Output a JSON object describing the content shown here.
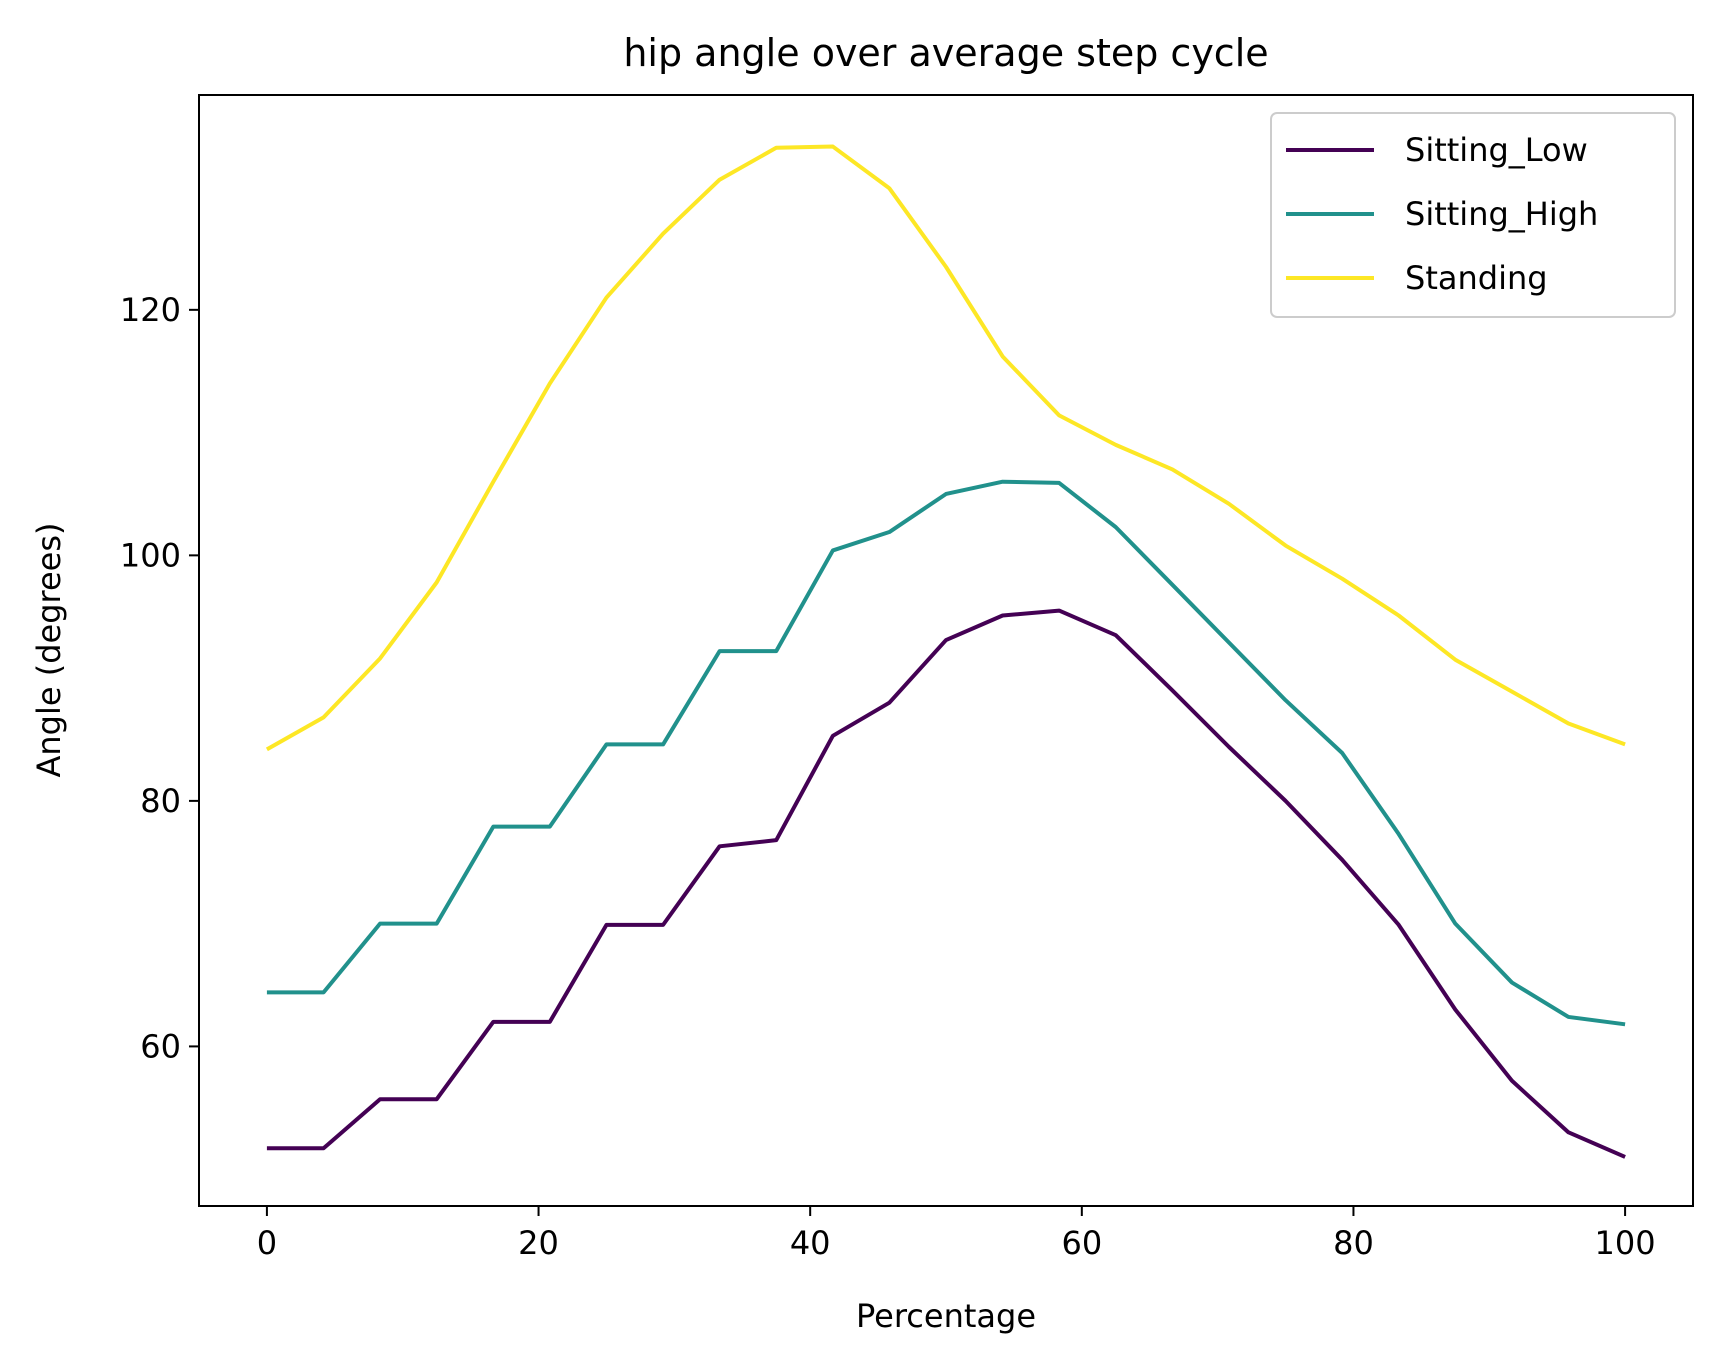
{
  "chart_data": {
    "type": "line",
    "title": "hip  angle over average step cycle",
    "xlabel": "Percentage",
    "ylabel": "Angle (degrees)",
    "xlim": [
      -5,
      105
    ],
    "ylim": [
      47,
      137.5
    ],
    "xticks": [
      0,
      20,
      40,
      60,
      80,
      100
    ],
    "yticks": [
      60,
      80,
      100,
      120
    ],
    "grid": false,
    "legend_position": "top-right",
    "x": [
      0,
      4.17,
      8.33,
      12.5,
      16.67,
      20.83,
      25,
      29.17,
      33.33,
      37.5,
      41.67,
      45.83,
      50,
      54.17,
      58.33,
      62.5,
      66.67,
      70.83,
      75,
      79.17,
      83.33,
      87.5,
      91.67,
      95.83,
      100
    ],
    "series": [
      {
        "name": "Sitting_Low",
        "color": "#440154",
        "values": [
          51.7,
          51.7,
          55.7,
          55.7,
          62.0,
          62.0,
          69.9,
          69.9,
          76.3,
          76.8,
          85.3,
          88.0,
          93.1,
          95.1,
          95.5,
          93.5,
          89.0,
          84.4,
          80.0,
          75.2,
          69.9,
          63.0,
          57.2,
          53.0,
          51.0
        ],
        "label_bind": "Sitting_Low"
      },
      {
        "name": "Sitting_High",
        "color": "#21918c",
        "values": [
          64.4,
          64.4,
          70.0,
          70.0,
          77.9,
          77.9,
          84.6,
          84.6,
          92.2,
          92.2,
          100.4,
          101.9,
          105.0,
          106.0,
          105.9,
          102.3,
          97.6,
          92.9,
          88.2,
          83.9,
          77.3,
          70.0,
          65.2,
          62.4,
          61.8
        ],
        "label_bind": "Sitting_High"
      },
      {
        "name": "Standing",
        "color": "#fde725",
        "values": [
          84.2,
          86.8,
          91.6,
          97.8,
          106.0,
          114.0,
          121.0,
          126.2,
          130.6,
          133.2,
          133.3,
          129.9,
          123.5,
          116.2,
          111.4,
          109.0,
          107.0,
          104.2,
          100.8,
          98.1,
          95.1,
          91.5,
          88.9,
          86.3,
          84.6
        ],
        "label_bind": "Standing"
      }
    ]
  }
}
